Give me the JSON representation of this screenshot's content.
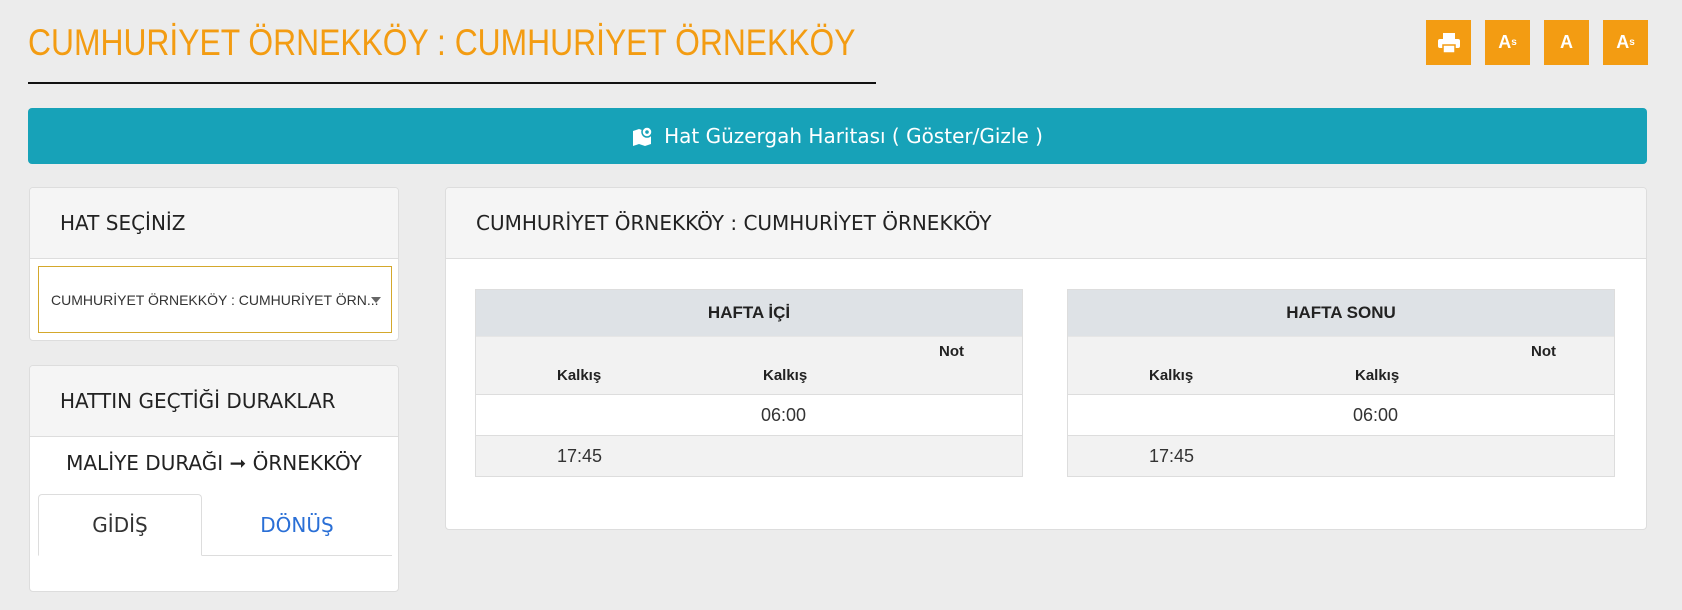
{
  "header": {
    "title": "CUMHURİYET ÖRNEKKÖY : CUMHURİYET ÖRNEKKÖY",
    "tools": [
      {
        "icon": "print-icon"
      },
      {
        "icon": "font-decrease-icon",
        "label": "A"
      },
      {
        "icon": "font-reset-icon",
        "label": "A"
      },
      {
        "icon": "font-increase-icon",
        "label": "A"
      }
    ]
  },
  "map_button": {
    "label": "Hat Güzergah Haritası ( Göster/Gizle )",
    "icon": "map-icon"
  },
  "line_select": {
    "title": "HAT SEÇİNİZ",
    "value": "CUMHURİYET ÖRNEKKÖY : CUMHURİYET ÖRN..."
  },
  "stops": {
    "title": "HATTIN GEÇTİĞİ DURAKLAR",
    "route": "MALİYE DURAĞI ➞ ÖRNEKKÖY",
    "tabs": [
      "GİDİŞ",
      "DÖNÜŞ"
    ],
    "active_tab": "GİDİŞ"
  },
  "schedule": {
    "title": "CUMHURİYET ÖRNEKKÖY : CUMHURİYET ÖRNEKKÖY",
    "tables": [
      {
        "title": "HAFTA İÇİ",
        "columns": [
          "Kalkış",
          "Kalkış",
          "Not"
        ],
        "rows": [
          [
            "",
            "06:00",
            ""
          ],
          [
            "17:45",
            "",
            ""
          ]
        ]
      },
      {
        "title": "HAFTA SONU",
        "columns": [
          "Kalkış",
          "Kalkış",
          "Not"
        ],
        "rows": [
          [
            "",
            "06:00",
            ""
          ],
          [
            "17:45",
            "",
            ""
          ]
        ]
      }
    ]
  },
  "colors": {
    "accent": "#f39c12",
    "map_bar": "#17a2b8",
    "link": "#2a6fd6"
  }
}
